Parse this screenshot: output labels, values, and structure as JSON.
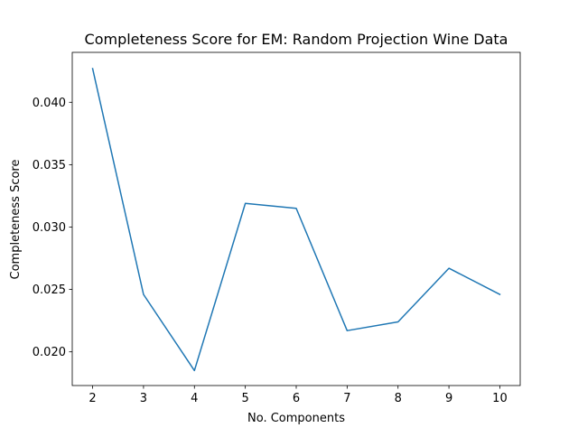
{
  "chart_data": {
    "type": "line",
    "title": "Completeness Score for EM: Random Projection Wine Data",
    "xlabel": "No. Components",
    "ylabel": "Completeness Score",
    "x": [
      2,
      3,
      4,
      5,
      6,
      7,
      8,
      9,
      10
    ],
    "series": [
      {
        "values": [
          0.0427,
          0.0246,
          0.0185,
          0.0319,
          0.0315,
          0.0217,
          0.0224,
          0.0267,
          0.0246
        ]
      }
    ],
    "xlim": [
      1.6,
      10.4
    ],
    "ylim": [
      0.0173,
      0.044
    ],
    "x_ticks": [
      "2",
      "3",
      "4",
      "5",
      "6",
      "7",
      "8",
      "9",
      "10"
    ],
    "y_ticks": [
      "0.020",
      "0.025",
      "0.030",
      "0.035",
      "0.040"
    ],
    "grid": false,
    "line_color": "#1f77b4"
  }
}
